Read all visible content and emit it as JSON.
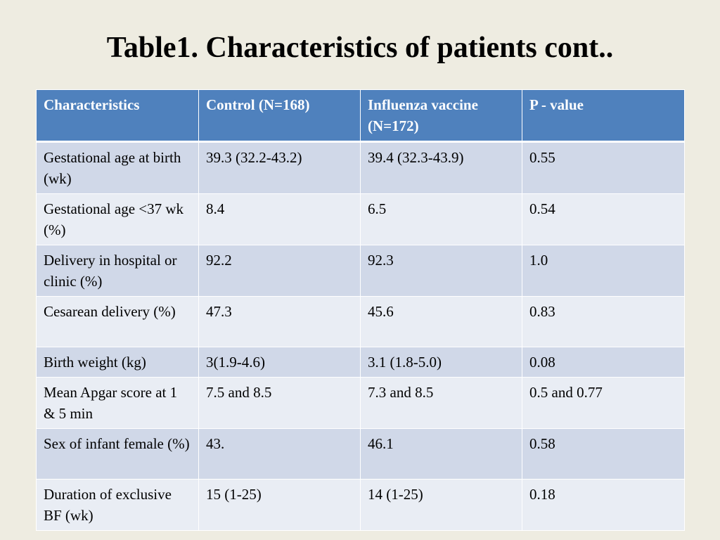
{
  "title": "Table1. Characteristics of patients cont..",
  "table": {
    "headers": [
      "Characteristics",
      "Control (N=168)",
      "Influenza vaccine (N=172)",
      "P - value"
    ],
    "rows": [
      [
        "Gestational age at birth (wk)",
        "39.3 (32.2-43.2)",
        "39.4 (32.3-43.9)",
        "0.55"
      ],
      [
        "Gestational age <37 wk (%)",
        "8.4",
        "6.5",
        "0.54"
      ],
      [
        "Delivery in hospital or clinic (%)",
        "92.2",
        "92.3",
        "1.0"
      ],
      [
        "Cesarean delivery (%)",
        "47.3",
        "45.6",
        "0.83"
      ],
      [
        "Birth weight (kg)",
        "3(1.9-4.6)",
        "3.1 (1.8-5.0)",
        "0.08"
      ],
      [
        "Mean Apgar score at 1 & 5 min",
        "7.5 and 8.5",
        "7.3 and 8.5",
        "0.5 and 0.77"
      ],
      [
        "Sex of infant female (%)",
        "43.",
        "46.1",
        "0.58"
      ],
      [
        "Duration of exclusive BF (wk)",
        "15 (1-25)",
        "14 (1-25)",
        "0.18"
      ]
    ]
  },
  "colors": {
    "background": "#eeece1",
    "header": "#4f81bd",
    "row_odd": "#d0d8e8",
    "row_even": "#e9edf4"
  }
}
